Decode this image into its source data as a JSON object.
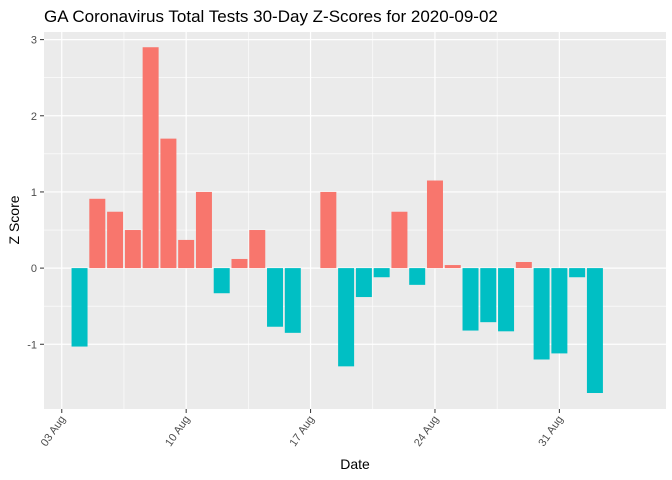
{
  "chart_data": {
    "type": "bar",
    "title": "GA Coronavirus Total Tests 30-Day Z-Scores for 2020-09-02",
    "xlabel": "Date",
    "ylabel": "Z Score",
    "x": [
      "2020-08-04",
      "2020-08-05",
      "2020-08-06",
      "2020-08-07",
      "2020-08-08",
      "2020-08-09",
      "2020-08-10",
      "2020-08-11",
      "2020-08-12",
      "2020-08-13",
      "2020-08-14",
      "2020-08-15",
      "2020-08-16",
      "2020-08-17",
      "2020-08-18",
      "2020-08-19",
      "2020-08-20",
      "2020-08-21",
      "2020-08-22",
      "2020-08-23",
      "2020-08-24",
      "2020-08-25",
      "2020-08-26",
      "2020-08-27",
      "2020-08-28",
      "2020-08-29",
      "2020-08-30",
      "2020-08-31",
      "2020-09-01",
      "2020-09-02"
    ],
    "values": [
      -1.03,
      0.91,
      0.74,
      0.5,
      2.9,
      1.7,
      0.37,
      1.0,
      -0.33,
      0.12,
      0.5,
      -0.77,
      -0.85,
      0,
      1.0,
      -1.29,
      -0.38,
      -0.12,
      0.74,
      -0.22,
      1.15,
      0.04,
      -0.82,
      -0.71,
      -0.83,
      0.08,
      -1.2,
      -1.12,
      -0.12,
      -1.64
    ],
    "ylim": [
      -1.85,
      3.1
    ],
    "xlim": [
      "2020-08-02",
      "2020-09-06"
    ],
    "yticks": [
      -1,
      0,
      1,
      2,
      3
    ],
    "xticks": [
      {
        "date": "2020-08-03",
        "label": "03 Aug"
      },
      {
        "date": "2020-08-10",
        "label": "10 Aug"
      },
      {
        "date": "2020-08-17",
        "label": "17 Aug"
      },
      {
        "date": "2020-08-24",
        "label": "24 Aug"
      },
      {
        "date": "2020-08-31",
        "label": "31 Aug"
      }
    ],
    "colors": {
      "positive": "#F8766D",
      "negative": "#00BFC4",
      "panel": "#EBEBEB",
      "grid": "#FFFFFF"
    },
    "legend": "none",
    "grid": true
  }
}
